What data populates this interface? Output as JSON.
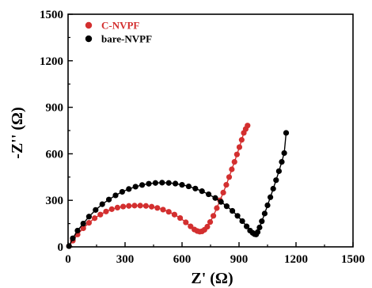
{
  "chart_data": {
    "type": "scatter",
    "title": "",
    "xlabel": "Z' (Ω)",
    "ylabel": "-Z'' (Ω)",
    "xlim": [
      0,
      1500
    ],
    "ylim": [
      0,
      1500
    ],
    "xticks": [
      0,
      300,
      600,
      900,
      1200,
      1500
    ],
    "yticks": [
      0,
      300,
      600,
      900,
      1200,
      1500
    ],
    "grid": false,
    "legend_position": "top-left",
    "series": [
      {
        "name": "C-NVPF",
        "color": "#d32f2f",
        "text_color": "#d32f2f",
        "x": [
          5,
          25,
          50,
          80,
          110,
          140,
          170,
          200,
          230,
          260,
          290,
          320,
          350,
          380,
          410,
          440,
          470,
          500,
          530,
          560,
          590,
          620,
          645,
          665,
          680,
          693,
          705,
          718,
          733,
          748,
          765,
          783,
          800,
          817,
          833,
          848,
          862,
          876,
          889,
          902,
          914,
          925,
          935,
          945
        ],
        "y": [
          5,
          40,
          80,
          120,
          155,
          185,
          208,
          228,
          243,
          253,
          260,
          264,
          266,
          266,
          264,
          259,
          251,
          240,
          226,
          208,
          186,
          158,
          132,
          112,
          102,
          98,
          100,
          110,
          130,
          160,
          200,
          250,
          300,
          350,
          400,
          450,
          500,
          548,
          596,
          643,
          690,
          735,
          760,
          782
        ]
      },
      {
        "name": "bare-NVPF",
        "color": "#000000",
        "text_color": "#000000",
        "x": [
          5,
          25,
          50,
          80,
          110,
          145,
          180,
          215,
          250,
          285,
          320,
          355,
          390,
          425,
          460,
          495,
          530,
          565,
          600,
          635,
          670,
          705,
          740,
          775,
          805,
          835,
          865,
          892,
          917,
          940,
          958,
          972,
          982,
          990,
          998,
          1008,
          1020,
          1035,
          1050,
          1065,
          1080,
          1095,
          1110,
          1125,
          1138,
          1148
        ],
        "y": [
          5,
          55,
          105,
          150,
          195,
          238,
          275,
          305,
          332,
          355,
          373,
          388,
          399,
          407,
          412,
          414,
          412,
          408,
          400,
          390,
          376,
          359,
          339,
          315,
          290,
          262,
          232,
          200,
          166,
          132,
          105,
          90,
          82,
          80,
          95,
          125,
          165,
          215,
          268,
          320,
          375,
          430,
          488,
          548,
          605,
          735
        ]
      }
    ]
  }
}
